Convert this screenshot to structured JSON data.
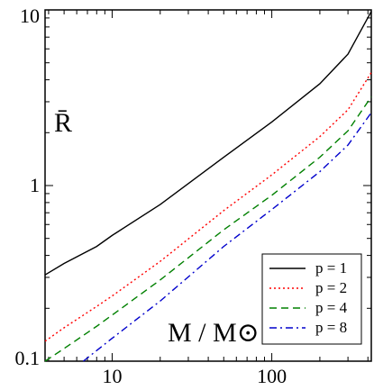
{
  "chart_data": {
    "type": "line",
    "xscale": "log",
    "yscale": "log",
    "xlim": [
      3.8,
      420
    ],
    "ylim": [
      0.1,
      10
    ],
    "grid": false,
    "legend_position": "lower-right",
    "xlabel": "M / M⊙",
    "ylabel": "R̄",
    "x_ticks": [
      10,
      100
    ],
    "x_tick_labels": [
      "10",
      "100"
    ],
    "y_ticks": [
      0.1,
      1,
      10
    ],
    "y_tick_labels": [
      "0.1",
      "1",
      "10"
    ],
    "series": [
      {
        "name": "p = 1",
        "color": "#000000",
        "dash": "",
        "x": [
          3.8,
          5,
          8,
          10,
          20,
          50,
          100,
          200,
          300,
          420
        ],
        "y": [
          0.31,
          0.36,
          0.45,
          0.52,
          0.78,
          1.45,
          2.3,
          3.8,
          5.6,
          9.8
        ]
      },
      {
        "name": "p = 2",
        "color": "#ff0000",
        "dash": "2,3",
        "x": [
          3.8,
          5,
          8,
          10,
          20,
          50,
          100,
          200,
          300,
          420
        ],
        "y": [
          0.13,
          0.155,
          0.205,
          0.235,
          0.37,
          0.72,
          1.15,
          1.9,
          2.7,
          4.4
        ]
      },
      {
        "name": "p = 4",
        "color": "#008000",
        "dash": "8,5",
        "x": [
          3.8,
          5,
          8,
          10,
          20,
          50,
          100,
          200,
          300,
          420
        ],
        "y": [
          0.1,
          0.118,
          0.158,
          0.183,
          0.29,
          0.56,
          0.88,
          1.45,
          2.05,
          3.2
        ]
      },
      {
        "name": "p = 8",
        "color": "#0000cc",
        "dash": "8,4,2,4",
        "x": [
          6.6,
          8,
          10,
          20,
          50,
          100,
          200,
          300,
          420
        ],
        "y": [
          0.1,
          0.115,
          0.135,
          0.22,
          0.45,
          0.73,
          1.2,
          1.7,
          2.6
        ]
      }
    ]
  }
}
